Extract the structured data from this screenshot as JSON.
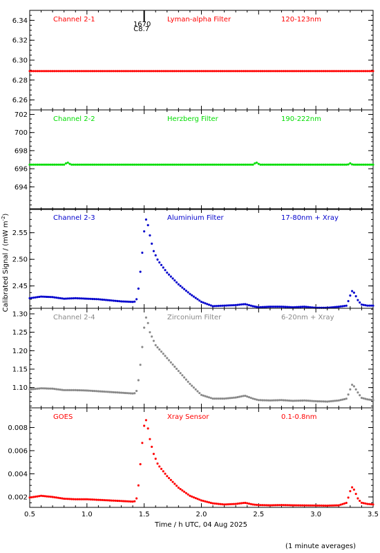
{
  "figure": {
    "xlabel": "Time / h UTC, 04 Aug 2025",
    "ylabel": "Calibrated Signal / (mW m",
    "ylabel_sup": "-2",
    "ylabel_end": ")",
    "footnote": "(1 minute averages)",
    "event_marker": {
      "time": 1.5,
      "label_top": "1670",
      "label_bottom": "C8.7"
    }
  },
  "chart_data": [
    {
      "type": "scatter",
      "channel": "Channel 2-1",
      "filter": "Lyman-alpha Filter",
      "band": "120-123nm",
      "color": "#ff0000",
      "xlim": [
        0.5,
        3.5
      ],
      "ylim": [
        6.25,
        6.35
      ],
      "yticks": [
        "6.26",
        "6.28",
        "6.30",
        "6.32",
        "6.34"
      ],
      "xticks": [],
      "keypoints": [
        [
          0.5,
          6.289
        ],
        [
          3.5,
          6.289
        ]
      ]
    },
    {
      "type": "scatter",
      "channel": "Channel 2-2",
      "filter": "Herzberg Filter",
      "band": "190-222nm",
      "color": "#00dd00",
      "xlim": [
        0.5,
        3.5
      ],
      "ylim": [
        691.5,
        702.5
      ],
      "yticks": [
        "694",
        "696",
        "698",
        "700",
        "702"
      ],
      "xticks": [],
      "keypoints": [
        [
          0.5,
          696.45
        ],
        [
          0.8,
          696.45
        ],
        [
          0.83,
          696.7
        ],
        [
          0.86,
          696.45
        ],
        [
          2.45,
          696.45
        ],
        [
          2.48,
          696.7
        ],
        [
          2.51,
          696.45
        ],
        [
          3.28,
          696.45
        ],
        [
          3.3,
          696.6
        ],
        [
          3.32,
          696.45
        ],
        [
          3.5,
          696.45
        ]
      ]
    },
    {
      "type": "scatter",
      "channel": "Channel 2-3",
      "filter": "Aluminium Filter",
      "band": "17-80nm + Xray",
      "color": "#0000cc",
      "xlim": [
        0.5,
        3.5
      ],
      "ylim": [
        2.408,
        2.595
      ],
      "yticks": [
        "2.45",
        "2.50",
        "2.55"
      ],
      "xticks": [],
      "keypoints": [
        [
          0.5,
          2.427
        ],
        [
          0.6,
          2.43
        ],
        [
          0.7,
          2.429
        ],
        [
          0.8,
          2.426
        ],
        [
          0.9,
          2.427
        ],
        [
          1.0,
          2.426
        ],
        [
          1.1,
          2.425
        ],
        [
          1.2,
          2.423
        ],
        [
          1.3,
          2.421
        ],
        [
          1.4,
          2.42
        ],
        [
          1.43,
          2.421
        ],
        [
          1.45,
          2.445
        ],
        [
          1.47,
          2.483
        ],
        [
          1.49,
          2.527
        ],
        [
          1.51,
          2.578
        ],
        [
          1.53,
          2.568
        ],
        [
          1.55,
          2.545
        ],
        [
          1.58,
          2.517
        ],
        [
          1.62,
          2.498
        ],
        [
          1.7,
          2.475
        ],
        [
          1.8,
          2.453
        ],
        [
          1.9,
          2.435
        ],
        [
          2.0,
          2.42
        ],
        [
          2.1,
          2.412
        ],
        [
          2.2,
          2.413
        ],
        [
          2.3,
          2.414
        ],
        [
          2.38,
          2.416
        ],
        [
          2.45,
          2.412
        ],
        [
          2.5,
          2.41
        ],
        [
          2.6,
          2.411
        ],
        [
          2.7,
          2.411
        ],
        [
          2.8,
          2.41
        ],
        [
          2.9,
          2.411
        ],
        [
          3.0,
          2.409
        ],
        [
          3.1,
          2.409
        ],
        [
          3.2,
          2.411
        ],
        [
          3.27,
          2.413
        ],
        [
          3.3,
          2.432
        ],
        [
          3.32,
          2.442
        ],
        [
          3.34,
          2.435
        ],
        [
          3.37,
          2.422
        ],
        [
          3.4,
          2.415
        ],
        [
          3.45,
          2.413
        ],
        [
          3.5,
          2.413
        ]
      ]
    },
    {
      "type": "scatter",
      "channel": "Channel 2-4",
      "filter": "Zirconium Filter",
      "band": "6-20nm + Xray",
      "color": "#888888",
      "xlim": [
        0.5,
        3.5
      ],
      "ylim": [
        1.045,
        1.315
      ],
      "yticks": [
        "1.10",
        "1.15",
        "1.20",
        "1.25",
        "1.30"
      ],
      "xticks": [],
      "keypoints": [
        [
          0.5,
          1.095
        ],
        [
          0.6,
          1.098
        ],
        [
          0.7,
          1.097
        ],
        [
          0.8,
          1.093
        ],
        [
          0.9,
          1.093
        ],
        [
          1.0,
          1.092
        ],
        [
          1.1,
          1.09
        ],
        [
          1.2,
          1.088
        ],
        [
          1.3,
          1.086
        ],
        [
          1.4,
          1.084
        ],
        [
          1.43,
          1.085
        ],
        [
          1.45,
          1.12
        ],
        [
          1.47,
          1.17
        ],
        [
          1.49,
          1.23
        ],
        [
          1.51,
          1.295
        ],
        [
          1.53,
          1.28
        ],
        [
          1.55,
          1.25
        ],
        [
          1.6,
          1.215
        ],
        [
          1.7,
          1.18
        ],
        [
          1.8,
          1.145
        ],
        [
          1.9,
          1.11
        ],
        [
          2.0,
          1.08
        ],
        [
          2.1,
          1.07
        ],
        [
          2.2,
          1.07
        ],
        [
          2.3,
          1.073
        ],
        [
          2.38,
          1.078
        ],
        [
          2.45,
          1.07
        ],
        [
          2.5,
          1.066
        ],
        [
          2.6,
          1.065
        ],
        [
          2.7,
          1.066
        ],
        [
          2.8,
          1.064
        ],
        [
          2.9,
          1.065
        ],
        [
          3.0,
          1.063
        ],
        [
          3.1,
          1.062
        ],
        [
          3.2,
          1.065
        ],
        [
          3.27,
          1.07
        ],
        [
          3.3,
          1.095
        ],
        [
          3.32,
          1.11
        ],
        [
          3.34,
          1.1
        ],
        [
          3.37,
          1.085
        ],
        [
          3.4,
          1.072
        ],
        [
          3.45,
          1.068
        ],
        [
          3.5,
          1.066
        ]
      ]
    },
    {
      "type": "scatter",
      "channel": "GOES",
      "filter": "Xray Sensor",
      "band": "0.1-0.8nm",
      "color": "#ff0000",
      "xlim": [
        0.5,
        3.5
      ],
      "ylim": [
        0.0011,
        0.0097
      ],
      "yticks": [
        "0.002",
        "0.004",
        "0.006",
        "0.008"
      ],
      "xticks": [
        "0.5",
        "1.0",
        "1.5",
        "2.0",
        "2.5",
        "3.0",
        "3.5"
      ],
      "keypoints": [
        [
          0.5,
          0.00195
        ],
        [
          0.6,
          0.0021
        ],
        [
          0.7,
          0.002
        ],
        [
          0.8,
          0.00185
        ],
        [
          0.9,
          0.0018
        ],
        [
          1.0,
          0.0018
        ],
        [
          1.1,
          0.00175
        ],
        [
          1.2,
          0.0017
        ],
        [
          1.3,
          0.00165
        ],
        [
          1.4,
          0.0016
        ],
        [
          1.43,
          0.00165
        ],
        [
          1.45,
          0.003
        ],
        [
          1.47,
          0.0052
        ],
        [
          1.49,
          0.0074
        ],
        [
          1.51,
          0.0089
        ],
        [
          1.53,
          0.0081
        ],
        [
          1.55,
          0.007
        ],
        [
          1.58,
          0.0058
        ],
        [
          1.62,
          0.0048
        ],
        [
          1.7,
          0.0038
        ],
        [
          1.8,
          0.0028
        ],
        [
          1.9,
          0.0021
        ],
        [
          2.0,
          0.0017
        ],
        [
          2.1,
          0.00145
        ],
        [
          2.2,
          0.00135
        ],
        [
          2.3,
          0.0014
        ],
        [
          2.38,
          0.0015
        ],
        [
          2.45,
          0.00135
        ],
        [
          2.5,
          0.0013
        ],
        [
          2.6,
          0.00128
        ],
        [
          2.7,
          0.0013
        ],
        [
          2.8,
          0.00128
        ],
        [
          2.9,
          0.00127
        ],
        [
          3.0,
          0.00126
        ],
        [
          3.1,
          0.00125
        ],
        [
          3.2,
          0.00128
        ],
        [
          3.27,
          0.0015
        ],
        [
          3.3,
          0.0025
        ],
        [
          3.32,
          0.0029
        ],
        [
          3.34,
          0.0025
        ],
        [
          3.37,
          0.0018
        ],
        [
          3.4,
          0.0015
        ],
        [
          3.45,
          0.0014
        ],
        [
          3.5,
          0.00135
        ]
      ]
    }
  ]
}
